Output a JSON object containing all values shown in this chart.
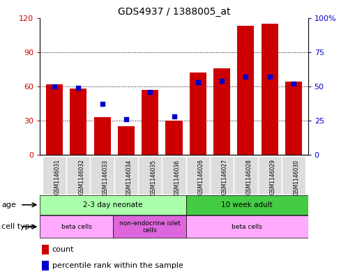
{
  "title": "GDS4937 / 1388005_at",
  "samples": [
    "GSM1146031",
    "GSM1146032",
    "GSM1146033",
    "GSM1146034",
    "GSM1146035",
    "GSM1146036",
    "GSM1146026",
    "GSM1146027",
    "GSM1146028",
    "GSM1146029",
    "GSM1146030"
  ],
  "counts": [
    62,
    58,
    33,
    25,
    57,
    30,
    72,
    76,
    113,
    115,
    64
  ],
  "percentiles": [
    50,
    49,
    37,
    26,
    46,
    28,
    53,
    54,
    57,
    57,
    52
  ],
  "ylim_left": [
    0,
    120
  ],
  "ylim_right": [
    0,
    100
  ],
  "yticks_left": [
    0,
    30,
    60,
    90,
    120
  ],
  "yticks_right": [
    0,
    25,
    50,
    75,
    100
  ],
  "ytick_labels_left": [
    "0",
    "30",
    "60",
    "90",
    "120"
  ],
  "ytick_labels_right": [
    "0",
    "25",
    "50",
    "75",
    "100%"
  ],
  "bar_color": "#cc0000",
  "dot_color": "#0000cc",
  "age_groups": [
    {
      "label": "2-3 day neonate",
      "start": 0,
      "end": 6,
      "color": "#aaffaa"
    },
    {
      "label": "10 week adult",
      "start": 6,
      "end": 11,
      "color": "#44cc44"
    }
  ],
  "cell_type_groups": [
    {
      "label": "beta cells",
      "start": 0,
      "end": 3,
      "color": "#ffaaff"
    },
    {
      "label": "non-endocrine islet\ncells",
      "start": 3,
      "end": 6,
      "color": "#dd66dd"
    },
    {
      "label": "beta cells",
      "start": 6,
      "end": 11,
      "color": "#ffaaff"
    }
  ],
  "legend_count_label": "count",
  "legend_percentile_label": "percentile rank within the sample",
  "plot_bg": "#ffffff",
  "chart_bg": "#ffffff",
  "label_bg": "#dddddd"
}
